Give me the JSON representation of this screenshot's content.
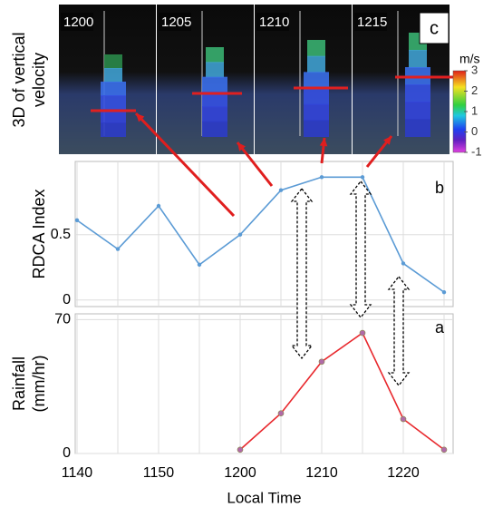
{
  "chart_data": [
    {
      "type": "line",
      "label": "b",
      "ylabel": "RDCA Index",
      "color": "#5b9bd5",
      "values": [
        0.61,
        0.39,
        0.72,
        0.27,
        0.5,
        0.84,
        0.94,
        0.94,
        0.28,
        0.06
      ],
      "ylim": [
        -0.05,
        1.06
      ],
      "yticks": [
        0,
        0.5
      ],
      "grid": true
    },
    {
      "type": "line",
      "label": "a",
      "ylabel_lines": [
        "Rainfall",
        "(mm/hr)"
      ],
      "xlabel": "Local Time",
      "color": "#e8282d",
      "marker_color": "#b06aa8",
      "categories": [
        "1140",
        null,
        "1150",
        null,
        "1200",
        null,
        "1210",
        null,
        "1220",
        null
      ],
      "values": [
        null,
        null,
        null,
        null,
        2,
        21,
        48,
        63,
        18,
        2
      ],
      "ylim": [
        0,
        73
      ],
      "yticks": [
        0,
        70
      ],
      "grid": true
    }
  ],
  "image_panel": {
    "label": "c",
    "ylabel_lines": [
      "3D of vertical",
      "velocity"
    ],
    "frames": [
      "1200",
      "1205",
      "1210",
      "1215"
    ],
    "colorbar": {
      "label": "m/s",
      "lim": [
        -1,
        3
      ],
      "ticks": [
        3,
        2,
        1,
        0,
        -1
      ]
    }
  }
}
